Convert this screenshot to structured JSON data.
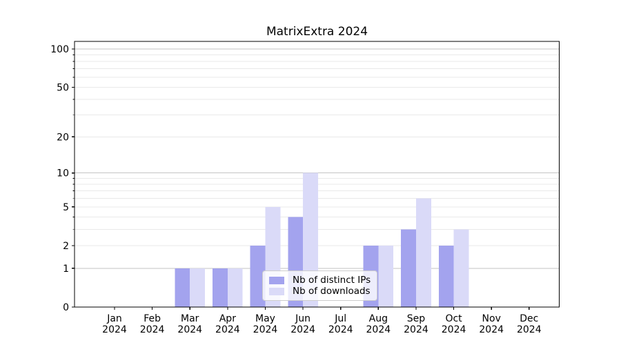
{
  "title": "MatrixExtra 2024",
  "legend": {
    "items": [
      {
        "label": "Nb of distinct IPs",
        "color": "#a3a3ee"
      },
      {
        "label": "Nb of downloads",
        "color": "#dadaf8"
      }
    ]
  },
  "chart_data": {
    "type": "bar",
    "title": "MatrixExtra 2024",
    "categories": [
      "Jan 2024",
      "Feb 2024",
      "Mar 2024",
      "Apr 2024",
      "May 2024",
      "Jun 2024",
      "Jul 2024",
      "Aug 2024",
      "Sep 2024",
      "Oct 2024",
      "Nov 2024",
      "Dec 2024"
    ],
    "series": [
      {
        "name": "Nb of distinct IPs",
        "color": "#a3a3ee",
        "values": [
          0,
          0,
          1,
          1,
          2,
          4,
          0,
          2,
          3,
          2,
          0,
          0
        ]
      },
      {
        "name": "Nb of downloads",
        "color": "#dadaf8",
        "values": [
          0,
          0,
          1,
          1,
          5,
          10,
          0,
          2,
          6,
          3,
          0,
          0
        ]
      }
    ],
    "xlabel": "",
    "ylabel": "",
    "yscale": "log1p",
    "ylim": [
      0,
      115
    ],
    "yticks": [
      0,
      1,
      2,
      5,
      10,
      20,
      50,
      100
    ],
    "y_major_gridlines": [
      1,
      10,
      100
    ],
    "y_minor_gridlines": [
      2,
      3,
      4,
      5,
      6,
      7,
      8,
      9,
      20,
      30,
      40,
      50,
      60,
      70,
      80,
      90
    ],
    "grid": "horizontal",
    "legend_position": "lower-center-inside"
  },
  "colors": {
    "background": "#ffffff",
    "axis": "#000000",
    "text": "#000000",
    "grid_major": "#c3c3c3",
    "grid_minor": "#e9e9e9"
  }
}
